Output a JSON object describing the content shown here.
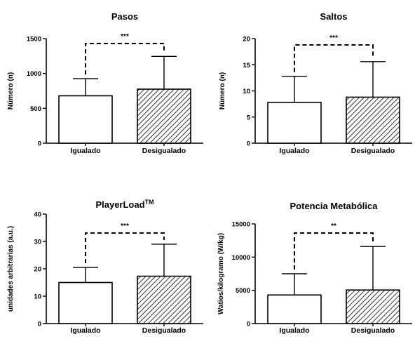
{
  "chart_data": [
    {
      "type": "bar",
      "title": "Pasos",
      "title_sup": "",
      "ylabel": "Número (n)",
      "ylim": [
        0,
        1500
      ],
      "yticks": [
        "0",
        "500",
        "1000",
        "1500"
      ],
      "categories": [
        "Igualado",
        "Desigualado"
      ],
      "values": [
        680,
        775
      ],
      "errors": [
        245,
        470
      ],
      "significance": "***",
      "patterns": [
        "none",
        "hatch"
      ]
    },
    {
      "type": "bar",
      "title": "Saltos",
      "title_sup": "",
      "ylabel": "Número (n)",
      "ylim": [
        0,
        20
      ],
      "yticks": [
        "0",
        "5",
        "10",
        "15",
        "20"
      ],
      "categories": [
        "Igualado",
        "Desigualado"
      ],
      "values": [
        7.8,
        8.8
      ],
      "errors": [
        5,
        6.8
      ],
      "significance": "***",
      "patterns": [
        "none",
        "hatch"
      ]
    },
    {
      "type": "bar",
      "title": "PlayerLoad",
      "title_sup": "TM",
      "ylabel": "unidades arbitrarias (a.u.)",
      "ylim": [
        0,
        40
      ],
      "yticks": [
        "0",
        "10",
        "20",
        "30",
        "40"
      ],
      "categories": [
        "Igualado",
        "Desigualado"
      ],
      "values": [
        15,
        17.3
      ],
      "errors": [
        5.5,
        11.7
      ],
      "significance": "***",
      "patterns": [
        "none",
        "hatch"
      ]
    },
    {
      "type": "bar",
      "title": "Potencia Metabólica",
      "title_sup": "",
      "ylabel": "Watios/kilogramo (W/kg)",
      "ylim": [
        0,
        15000
      ],
      "yticks": [
        "0",
        "5000",
        "10000",
        "15000"
      ],
      "categories": [
        "Igualado",
        "Desigualado"
      ],
      "values": [
        4300,
        5050
      ],
      "errors": [
        3200,
        6550
      ],
      "significance": "**",
      "patterns": [
        "none",
        "hatch"
      ]
    }
  ]
}
